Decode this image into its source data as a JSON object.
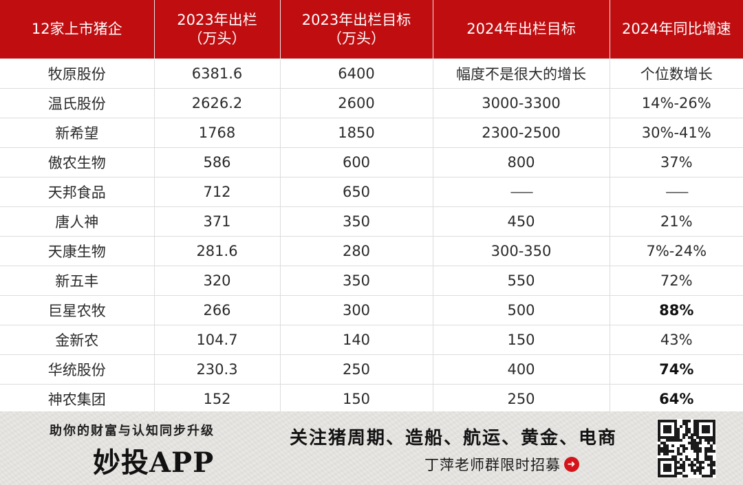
{
  "table": {
    "headers": [
      {
        "line1": "12家上市猪企",
        "line2": ""
      },
      {
        "line1": "2023年出栏",
        "line2": "（万头）"
      },
      {
        "line1": "2023年出栏目标",
        "line2": "（万头）"
      },
      {
        "line1": "2024年出栏目标",
        "line2": ""
      },
      {
        "line1": "2024年同比增速",
        "line2": ""
      }
    ],
    "rows": [
      {
        "company": "牧原股份",
        "out2023": "6381.6",
        "target2023": "6400",
        "target2024": "幅度不是很大的增长",
        "growth2024": "个位数增长",
        "growth_bold": false
      },
      {
        "company": "温氏股份",
        "out2023": "2626.2",
        "target2023": "2600",
        "target2024": "3000-3300",
        "growth2024": "14%-26%",
        "growth_bold": false
      },
      {
        "company": "新希望",
        "out2023": "1768",
        "target2023": "1850",
        "target2024": "2300-2500",
        "growth2024": "30%-41%",
        "growth_bold": false
      },
      {
        "company": "傲农生物",
        "out2023": "586",
        "target2023": "600",
        "target2024": "800",
        "growth2024": "37%",
        "growth_bold": false
      },
      {
        "company": "天邦食品",
        "out2023": "712",
        "target2023": "650",
        "target2024": "——",
        "growth2024": "——",
        "growth_bold": false
      },
      {
        "company": "唐人神",
        "out2023": "371",
        "target2023": "350",
        "target2024": "450",
        "growth2024": "21%",
        "growth_bold": false
      },
      {
        "company": "天康生物",
        "out2023": "281.6",
        "target2023": "280",
        "target2024": "300-350",
        "growth2024": "7%-24%",
        "growth_bold": false
      },
      {
        "company": "新五丰",
        "out2023": "320",
        "target2023": "350",
        "target2024": "550",
        "growth2024": "72%",
        "growth_bold": false
      },
      {
        "company": "巨星农牧",
        "out2023": "266",
        "target2023": "300",
        "target2024": "500",
        "growth2024": "88%",
        "growth_bold": true
      },
      {
        "company": "金新农",
        "out2023": "104.7",
        "target2023": "140",
        "target2024": "150",
        "growth2024": "43%",
        "growth_bold": false
      },
      {
        "company": "华统股份",
        "out2023": "230.3",
        "target2023": "250",
        "target2024": "400",
        "growth2024": "74%",
        "growth_bold": true
      },
      {
        "company": "神农集团",
        "out2023": "152",
        "target2023": "150",
        "target2024": "250",
        "growth2024": "64%",
        "growth_bold": true
      }
    ]
  },
  "footer": {
    "slogan": "助你的财富与认知同步升级",
    "brand": "妙投APP",
    "headline": "关注猪周期、造船、航运、黄金、电商",
    "recruit": "丁萍老师群限时招募",
    "arrow_icon": "right-arrow-circle-icon",
    "qr_icon": "qr-code-icon"
  },
  "colors": {
    "header_bg": "#c00d10",
    "accent_red": "#d4141a"
  }
}
